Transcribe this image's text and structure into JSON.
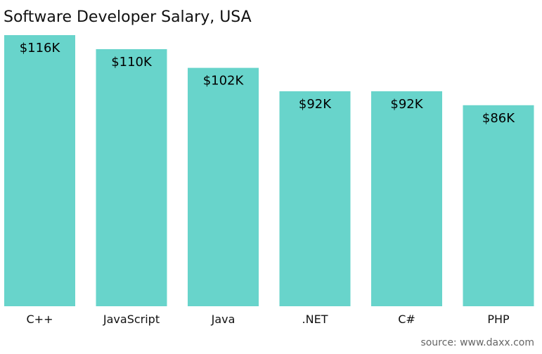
{
  "chart_data": {
    "type": "bar",
    "title": "Software Developer Salary, USA",
    "categories": [
      "C++",
      "JavaScript",
      "Java",
      ".NET",
      "C#",
      "PHP"
    ],
    "values": [
      116,
      110,
      102,
      92,
      92,
      86
    ],
    "data_labels": [
      "$116K",
      "$110K",
      "$102K",
      "$92K",
      "$92K",
      "$86K"
    ],
    "xlabel": "",
    "ylabel": "",
    "ylim": [
      0,
      116
    ],
    "grid": false,
    "legend": "none",
    "bar_color": "#68D4CB"
  },
  "source": "source: www.daxx.com"
}
